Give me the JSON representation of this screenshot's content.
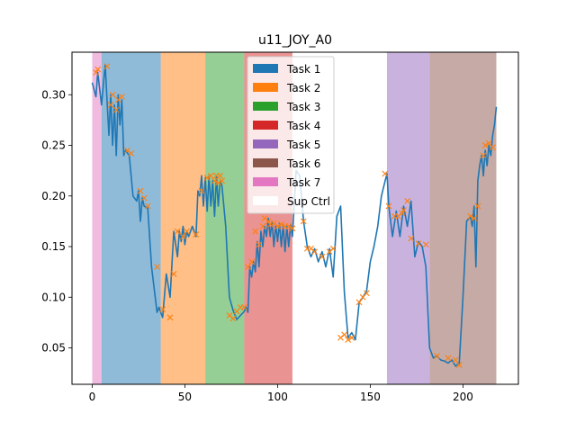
{
  "chart_data": {
    "type": "line",
    "title": "u11_JOY_A0",
    "xlabel": "",
    "ylabel": "",
    "xlim": [
      -10.9,
      229.9
    ],
    "ylim": [
      0.014,
      0.342
    ],
    "x_ticks": [
      0,
      50,
      100,
      150,
      200
    ],
    "y_ticks": [
      0.05,
      0.1,
      0.15,
      0.2,
      0.25,
      0.3
    ],
    "y_tick_labels": [
      "0.05",
      "0.10",
      "0.15",
      "0.20",
      "0.25",
      "0.30"
    ],
    "grid": false,
    "legend_position": "top-center",
    "legend": [
      {
        "label": "Task 1",
        "color": "#1f77b4"
      },
      {
        "label": "Task 2",
        "color": "#ff7f0e"
      },
      {
        "label": "Task 3",
        "color": "#2ca02c"
      },
      {
        "label": "Task 4",
        "color": "#d62728"
      },
      {
        "label": "Task 5",
        "color": "#9467bd"
      },
      {
        "label": "Task 6",
        "color": "#8c564b"
      },
      {
        "label": "Task 7",
        "color": "#e377c2"
      },
      {
        "label": "Sup Ctrl",
        "color": "#ffffff"
      }
    ],
    "regions": [
      {
        "task": "Task 7",
        "start": 0,
        "end": 5,
        "color": "#e377c2"
      },
      {
        "task": "Task 1",
        "start": 5,
        "end": 37,
        "color": "#1f77b4"
      },
      {
        "task": "Task 2",
        "start": 37,
        "end": 61,
        "color": "#ff7f0e"
      },
      {
        "task": "Task 3",
        "start": 61,
        "end": 82,
        "color": "#2ca02c"
      },
      {
        "task": "Task 4",
        "start": 82,
        "end": 108,
        "color": "#d62728"
      },
      {
        "task": "Task 5",
        "start": 159,
        "end": 182,
        "color": "#9467bd"
      },
      {
        "task": "Task 6",
        "start": 182,
        "end": 218,
        "color": "#8c564b"
      }
    ],
    "series": [
      {
        "color": "#1f77b4",
        "x": [
          0,
          2,
          3,
          5,
          7,
          8,
          9,
          10,
          11,
          12,
          13,
          14,
          15,
          16,
          17,
          18,
          20,
          22,
          24,
          25,
          26,
          27,
          28,
          30,
          32,
          35,
          36,
          38,
          40,
          42,
          44,
          46,
          47,
          48,
          49,
          50,
          51,
          52,
          54,
          56,
          57,
          58,
          59,
          60,
          61,
          62,
          63,
          64,
          65,
          66,
          67,
          68,
          69,
          70,
          72,
          74,
          76,
          78,
          80,
          82,
          83,
          84,
          85,
          86,
          87,
          88,
          89,
          90,
          91,
          92,
          93,
          94,
          95,
          96,
          97,
          98,
          99,
          100,
          101,
          102,
          103,
          104,
          105,
          106,
          107,
          108,
          110,
          112,
          114,
          116,
          118,
          120,
          122,
          124,
          126,
          128,
          130,
          132,
          134,
          136,
          138,
          140,
          142,
          144,
          146,
          148,
          150,
          152,
          154,
          156,
          158,
          159,
          160,
          162,
          164,
          166,
          168,
          170,
          172,
          174,
          176,
          178,
          180,
          182,
          184,
          186,
          188,
          190,
          192,
          194,
          196,
          198,
          200,
          202,
          204,
          205,
          206,
          207,
          208,
          209,
          210,
          211,
          212,
          213,
          214,
          215,
          216,
          217,
          218
        ],
        "y": [
          0.312,
          0.298,
          0.322,
          0.29,
          0.33,
          0.295,
          0.26,
          0.3,
          0.25,
          0.29,
          0.24,
          0.3,
          0.27,
          0.295,
          0.24,
          0.245,
          0.24,
          0.2,
          0.195,
          0.205,
          0.175,
          0.198,
          0.19,
          0.188,
          0.13,
          0.085,
          0.09,
          0.08,
          0.123,
          0.1,
          0.165,
          0.14,
          0.165,
          0.155,
          0.17,
          0.152,
          0.165,
          0.16,
          0.17,
          0.16,
          0.205,
          0.2,
          0.22,
          0.19,
          0.218,
          0.185,
          0.22,
          0.19,
          0.215,
          0.18,
          0.22,
          0.19,
          0.215,
          0.21,
          0.17,
          0.1,
          0.087,
          0.078,
          0.082,
          0.086,
          0.09,
          0.085,
          0.13,
          0.12,
          0.135,
          0.125,
          0.155,
          0.13,
          0.165,
          0.15,
          0.17,
          0.16,
          0.178,
          0.16,
          0.175,
          0.15,
          0.172,
          0.155,
          0.173,
          0.15,
          0.172,
          0.145,
          0.17,
          0.15,
          0.172,
          0.16,
          0.225,
          0.22,
          0.175,
          0.15,
          0.14,
          0.148,
          0.135,
          0.145,
          0.13,
          0.148,
          0.12,
          0.18,
          0.19,
          0.105,
          0.06,
          0.065,
          0.058,
          0.095,
          0.1,
          0.106,
          0.135,
          0.15,
          0.17,
          0.2,
          0.215,
          0.222,
          0.19,
          0.16,
          0.185,
          0.16,
          0.19,
          0.17,
          0.195,
          0.14,
          0.155,
          0.15,
          0.13,
          0.05,
          0.04,
          0.042,
          0.038,
          0.037,
          0.035,
          0.038,
          0.032,
          0.035,
          0.1,
          0.175,
          0.18,
          0.17,
          0.19,
          0.13,
          0.215,
          0.23,
          0.24,
          0.22,
          0.245,
          0.23,
          0.25,
          0.24,
          0.26,
          0.27,
          0.288
        ]
      },
      {
        "marker": "x",
        "color": "#ff7f0e",
        "x": [
          2,
          3,
          8,
          10,
          11,
          13,
          14,
          16,
          19,
          21,
          26,
          28,
          30,
          35,
          38,
          42,
          44,
          46,
          49,
          51,
          56,
          59,
          62,
          64,
          66,
          67,
          68,
          69,
          70,
          74,
          76,
          78,
          80,
          82,
          84,
          86,
          88,
          90,
          92,
          93,
          95,
          96,
          98,
          100,
          102,
          104,
          106,
          108,
          114,
          116,
          118,
          120,
          124,
          128,
          130,
          134,
          136,
          138,
          140,
          144,
          146,
          148,
          158,
          160,
          163,
          165,
          167,
          168,
          170,
          172,
          176,
          180,
          186,
          192,
          196,
          198,
          204,
          206,
          208,
          211,
          212,
          214,
          216
        ],
        "y": [
          0.322,
          0.325,
          0.328,
          0.29,
          0.3,
          0.285,
          0.295,
          0.298,
          0.245,
          0.242,
          0.205,
          0.198,
          0.19,
          0.13,
          0.088,
          0.08,
          0.123,
          0.165,
          0.16,
          0.165,
          0.162,
          0.205,
          0.218,
          0.22,
          0.215,
          0.22,
          0.213,
          0.22,
          0.215,
          0.082,
          0.079,
          0.086,
          0.09,
          0.09,
          0.13,
          0.135,
          0.165,
          0.152,
          0.17,
          0.178,
          0.175,
          0.172,
          0.173,
          0.17,
          0.172,
          0.17,
          0.17,
          0.168,
          0.175,
          0.148,
          0.148,
          0.145,
          0.14,
          0.145,
          0.148,
          0.06,
          0.063,
          0.058,
          0.06,
          0.095,
          0.1,
          0.104,
          0.222,
          0.19,
          0.18,
          0.18,
          0.183,
          0.186,
          0.195,
          0.158,
          0.153,
          0.152,
          0.042,
          0.04,
          0.038,
          0.033,
          0.18,
          0.178,
          0.19,
          0.24,
          0.25,
          0.252,
          0.248
        ]
      }
    ]
  }
}
